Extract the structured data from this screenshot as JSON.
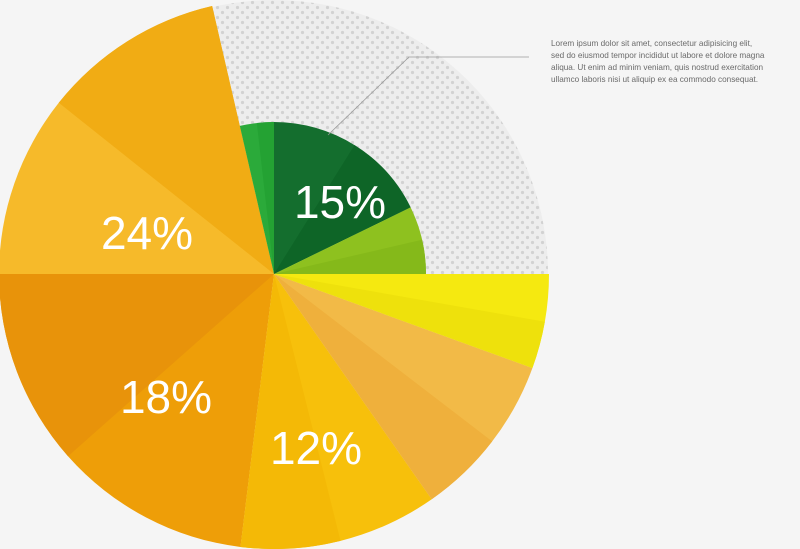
{
  "chart_data": {
    "type": "pie",
    "title": "",
    "slices": [
      {
        "value": 24,
        "label": "24%",
        "color": "#F6BA2A",
        "shade": "#F1AC14"
      },
      {
        "value": 15,
        "label": "15%",
        "color": "#146E2E",
        "shade": "#0E6527"
      },
      {
        "value": 18,
        "label": "18%",
        "color": "#EE9E08",
        "shade": "#E8930A"
      },
      {
        "value": 12,
        "label": "12%",
        "color": "#F7C00B",
        "shade": "#F4B906"
      },
      {
        "value": null,
        "label": "",
        "color": "#F2BA47",
        "shade": "#EFB03C"
      },
      {
        "value": null,
        "label": "",
        "color": "#F5E910",
        "shade": "#EEE10C"
      },
      {
        "value": null,
        "label": "",
        "color": "#8EC11F",
        "shade": "#85B91A"
      },
      {
        "value": null,
        "label": "",
        "color": "#2BAA3A",
        "shade": "#24A233"
      }
    ],
    "background_pattern": "dotted",
    "legend": "none"
  },
  "annotation": {
    "lines": [
      "Lorem ipsum dolor sit amet, consectetur adipisicing elit,",
      "sed do eiusmod tempor incididut ut labore et dolore magna",
      "aliqua. Ut enim ad minim veniam, quis nostrud exercitation",
      "ullamco laboris nisi ut aliquip ex ea commodo consequat."
    ],
    "text_color": "#6a6a6a",
    "leader_color": "#9a9a9a"
  },
  "colors": {
    "page_background": "#f5f5f5",
    "dot_background": "#ededed",
    "dot_color": "#d2d2d2",
    "label_text": "#ffffff"
  }
}
